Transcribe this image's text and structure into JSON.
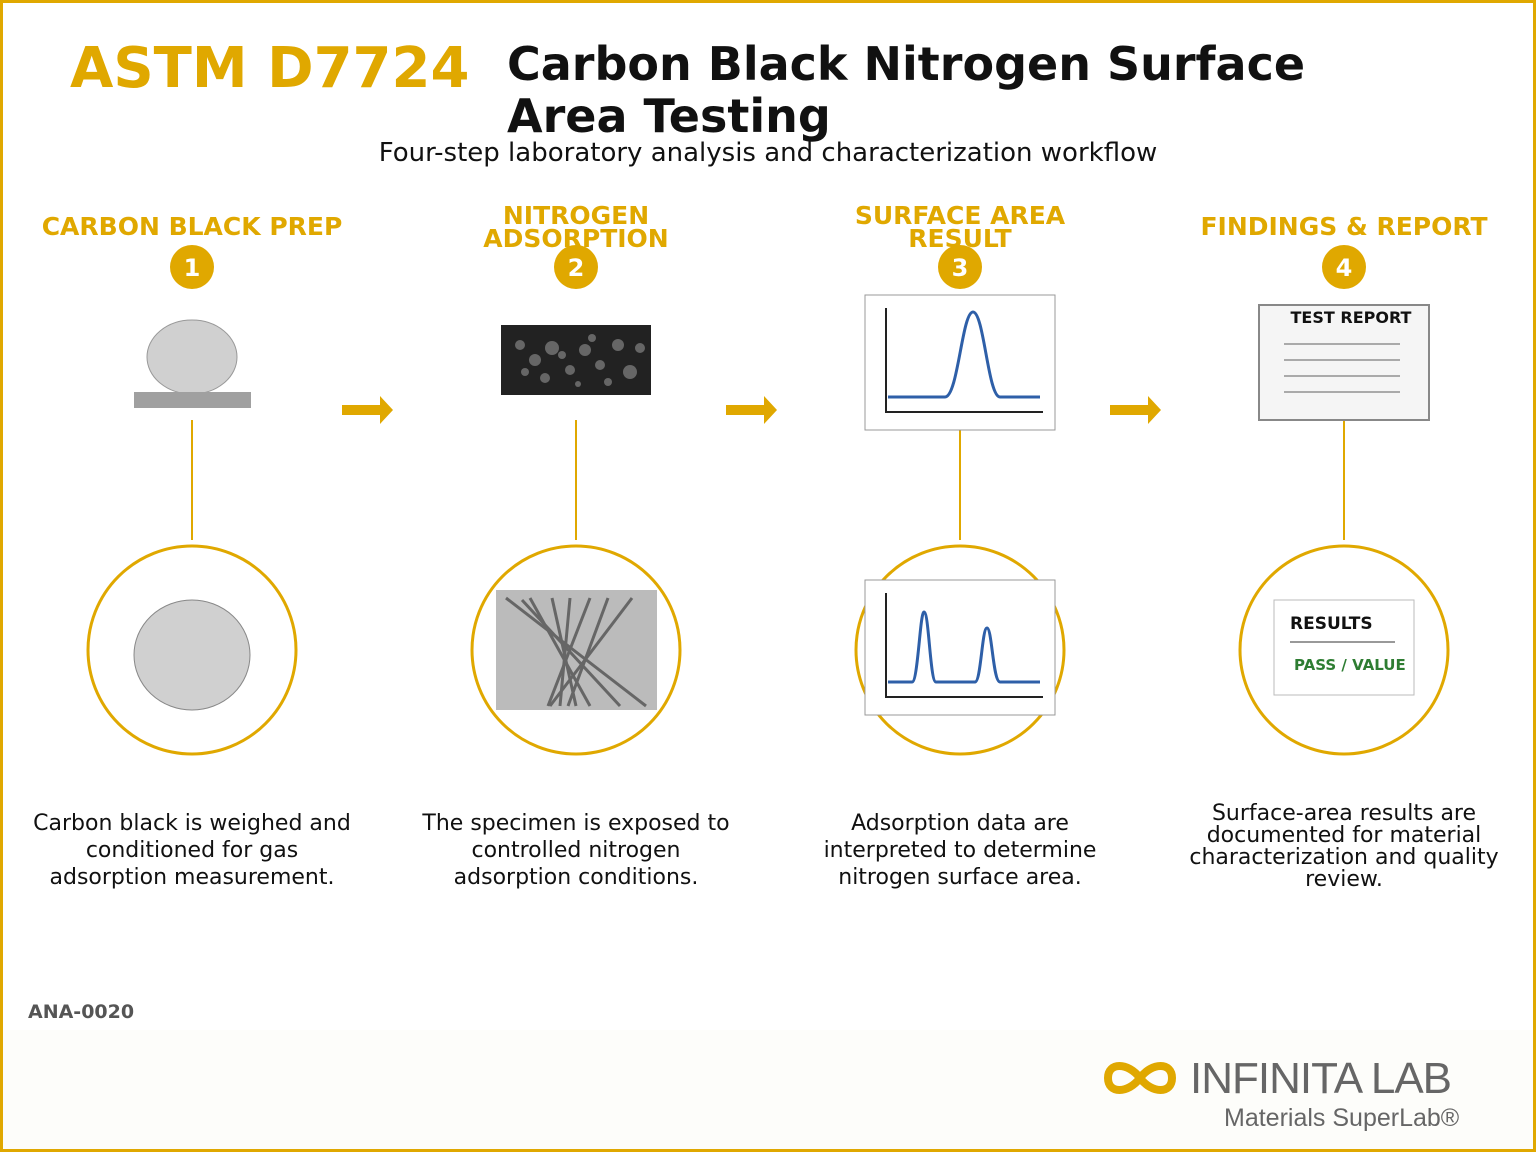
{
  "header": {
    "code": "ASTM D7724",
    "title": "Carbon Black Nitrogen Surface Area Testing",
    "subtitle": "Four-step laboratory analysis and characterization workflow"
  },
  "steps": [
    {
      "number": "1",
      "title": "CARBON BLACK PREP",
      "description": "Carbon black is weighed and conditioned for gas adsorption measurement."
    },
    {
      "number": "2",
      "title": "NITROGEN ADSORPTION",
      "description": "The specimen is exposed to controlled nitrogen adsorption conditions."
    },
    {
      "number": "3",
      "title": "SURFACE AREA RESULT",
      "description": "Adsorption data are interpreted to determine nitrogen surface area."
    },
    {
      "number": "4",
      "title": "FINDINGS & REPORT",
      "description": "Surface-area results are documented for material characterization and quality review."
    }
  ],
  "icons": {
    "report_title": "TEST REPORT",
    "results_title": "RESULTS",
    "results_value": "PASS / VALUE"
  },
  "footer": {
    "doc_id": "ANA-0020",
    "brand": "INFINITA LAB",
    "tagline": "Materials SuperLab®"
  }
}
